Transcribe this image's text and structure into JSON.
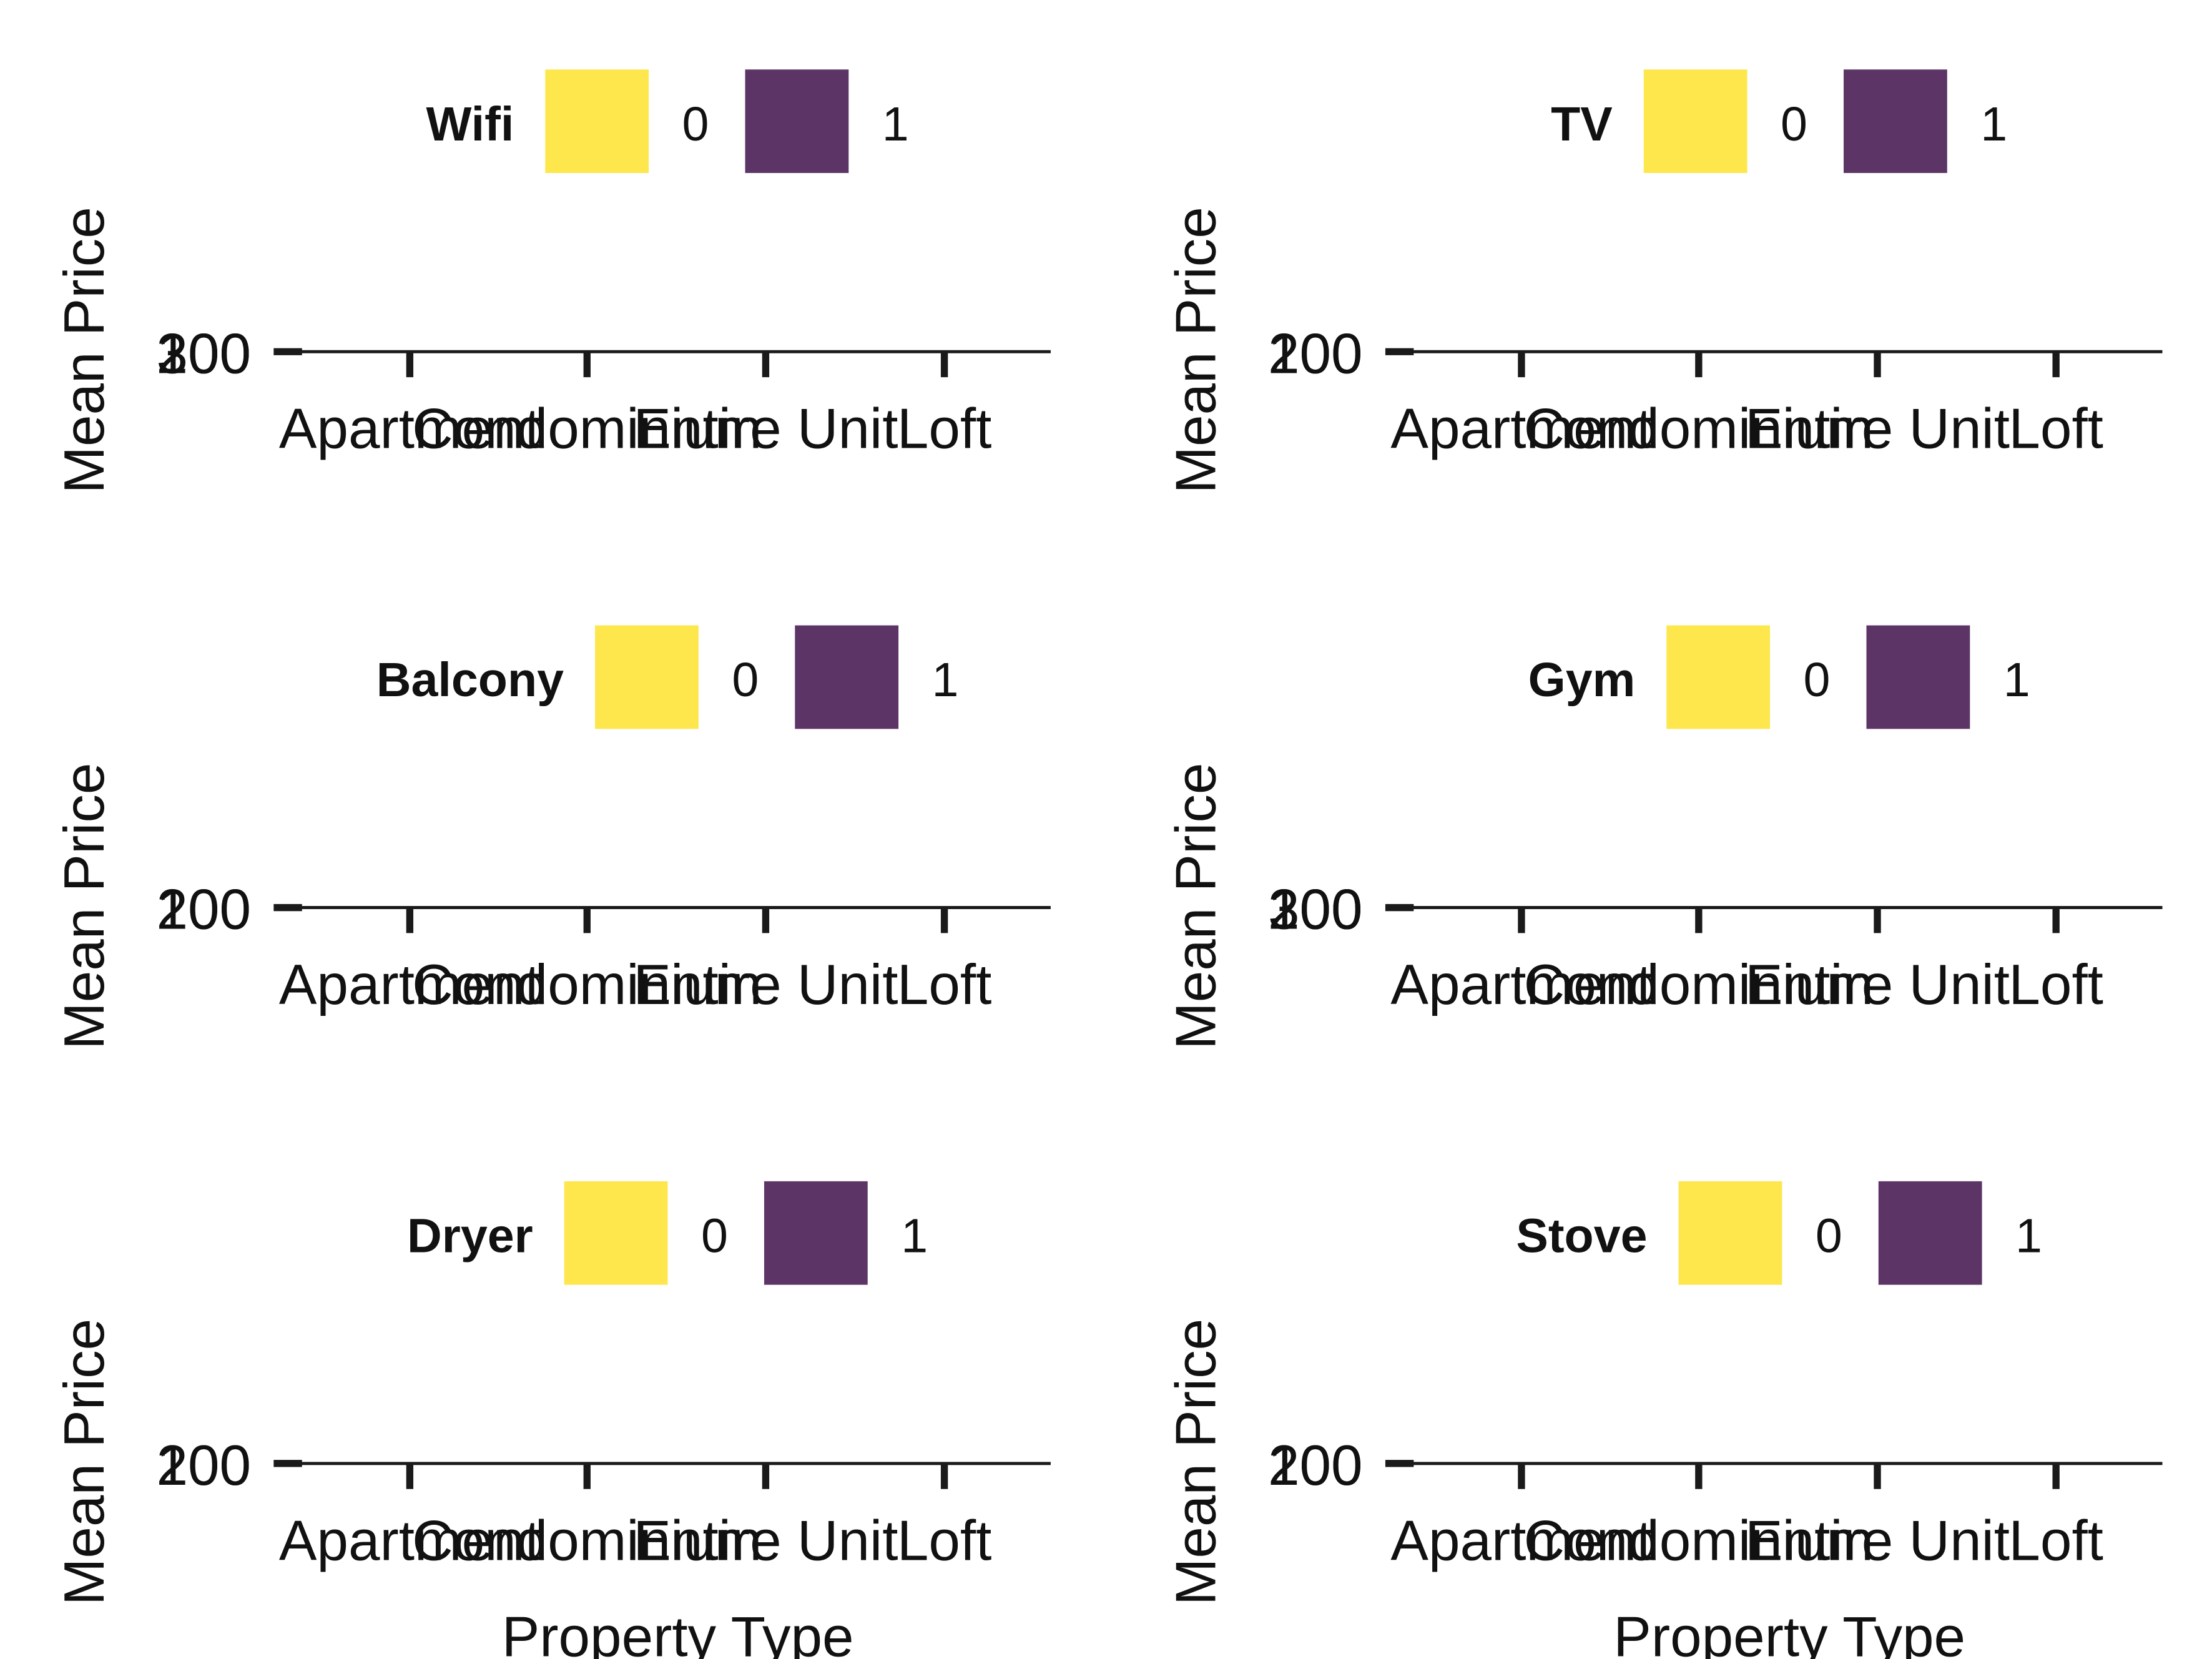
{
  "colors": {
    "background": "#ffffff",
    "axis": "#1a1a1a",
    "level_0": "#FDE74C",
    "level_1": "#5C3566"
  },
  "chart_data": [
    {
      "type": "bar",
      "legend_title": "Wifi",
      "legend_position": "top",
      "legend_levels": [
        "0",
        "1"
      ],
      "categories": [
        "Apartment",
        "Condominium",
        "Entire Unit",
        "Loft"
      ],
      "xlabel": "",
      "ylabel": "Mean Price",
      "y_tick_labels": [
        "100",
        "200",
        "300"
      ],
      "series": [
        {
          "name": "0",
          "values": [
            null,
            null,
            null,
            null
          ]
        },
        {
          "name": "1",
          "values": [
            null,
            null,
            null,
            null
          ]
        }
      ],
      "grid": false
    },
    {
      "type": "bar",
      "legend_title": "TV",
      "legend_position": "top",
      "legend_levels": [
        "0",
        "1"
      ],
      "categories": [
        "Apartment",
        "Condominium",
        "Entire Unit",
        "Loft"
      ],
      "xlabel": "",
      "ylabel": "Mean Price",
      "y_tick_labels": [
        "100",
        "200"
      ],
      "series": [
        {
          "name": "0",
          "values": [
            null,
            null,
            null,
            null
          ]
        },
        {
          "name": "1",
          "values": [
            null,
            null,
            null,
            null
          ]
        }
      ],
      "grid": false
    },
    {
      "type": "bar",
      "legend_title": "Balcony",
      "legend_position": "top",
      "legend_levels": [
        "0",
        "1"
      ],
      "categories": [
        "Apartment",
        "Condominium",
        "Entire Unit",
        "Loft"
      ],
      "xlabel": "",
      "ylabel": "Mean Price",
      "y_tick_labels": [
        "100",
        "200"
      ],
      "series": [
        {
          "name": "0",
          "values": [
            null,
            null,
            null,
            null
          ]
        },
        {
          "name": "1",
          "values": [
            null,
            null,
            null,
            null
          ]
        }
      ],
      "grid": false
    },
    {
      "type": "bar",
      "legend_title": "Gym",
      "legend_position": "top",
      "legend_levels": [
        "0",
        "1"
      ],
      "categories": [
        "Apartment",
        "Condominium",
        "Entire Unit",
        "Loft"
      ],
      "xlabel": "",
      "ylabel": "Mean Price",
      "y_tick_labels": [
        "100",
        "200",
        "300"
      ],
      "series": [
        {
          "name": "0",
          "values": [
            null,
            null,
            null,
            null
          ]
        },
        {
          "name": "1",
          "values": [
            null,
            null,
            null,
            null
          ]
        }
      ],
      "grid": false
    },
    {
      "type": "bar",
      "legend_title": "Dryer",
      "legend_position": "top",
      "legend_levels": [
        "0",
        "1"
      ],
      "categories": [
        "Apartment",
        "Condominium",
        "Entire Unit",
        "Loft"
      ],
      "xlabel": "Property Type",
      "ylabel": "Mean Price",
      "y_tick_labels": [
        "100",
        "200"
      ],
      "series": [
        {
          "name": "0",
          "values": [
            null,
            null,
            null,
            null
          ]
        },
        {
          "name": "1",
          "values": [
            null,
            null,
            null,
            null
          ]
        }
      ],
      "grid": false
    },
    {
      "type": "bar",
      "legend_title": "Stove",
      "legend_position": "top",
      "legend_levels": [
        "0",
        "1"
      ],
      "categories": [
        "Apartment",
        "Condominium",
        "Entire Unit",
        "Loft"
      ],
      "xlabel": "Property Type",
      "ylabel": "Mean Price",
      "y_tick_labels": [
        "100",
        "200"
      ],
      "series": [
        {
          "name": "0",
          "values": [
            null,
            null,
            null,
            null
          ]
        },
        {
          "name": "1",
          "values": [
            null,
            null,
            null,
            null
          ]
        }
      ],
      "grid": false
    }
  ]
}
